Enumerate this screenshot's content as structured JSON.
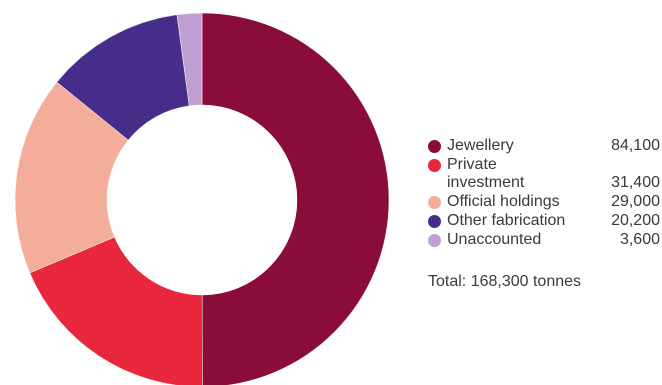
{
  "chart_data": {
    "type": "pie",
    "variant": "donut",
    "categories": [
      "Jewellery",
      "Private investment",
      "Official holdings",
      "Other fabrication",
      "Unaccounted"
    ],
    "values": [
      84100,
      31400,
      29000,
      20200,
      3600
    ],
    "colors": [
      "#8a0c3a",
      "#e8273d",
      "#f4ad9b",
      "#472d8a",
      "#c19fd2"
    ],
    "legend_position": "right",
    "total_text": "Total: 168,300 tonnes"
  },
  "legend": [
    {
      "label": "Jewellery",
      "value": "84,100"
    },
    {
      "label": "Private investment",
      "value": "31,400"
    },
    {
      "label": "Official holdings",
      "value": "29,000"
    },
    {
      "label": "Other fabrication",
      "value": "20,200"
    },
    {
      "label": "Unaccounted",
      "value": "3,600"
    }
  ]
}
